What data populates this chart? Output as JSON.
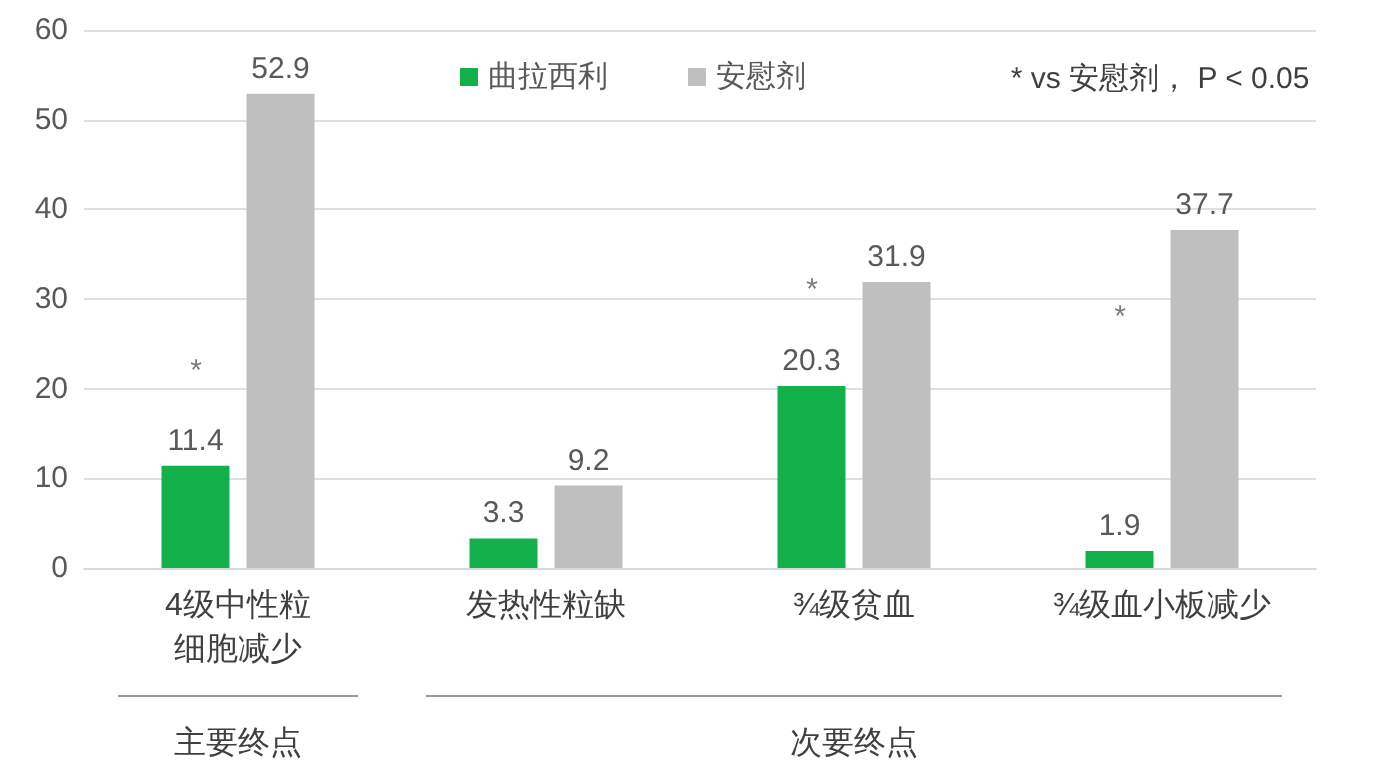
{
  "chart_data": {
    "type": "bar",
    "categories": [
      "4级中性粒细胞减少",
      "发热性粒缺",
      "¾级贫血",
      "¾级血小板减少"
    ],
    "series": [
      {
        "name": "曲拉西利",
        "color": "#12b14c",
        "values": [
          11.4,
          3.3,
          20.3,
          1.9
        ]
      },
      {
        "name": "安慰剂",
        "color": "#bfbfbf",
        "values": [
          52.9,
          9.2,
          31.9,
          37.7
        ]
      }
    ],
    "ylim": [
      0,
      60
    ],
    "yticks": [
      0,
      10,
      20,
      30,
      40,
      50,
      60
    ],
    "grid": "y",
    "legend": "top",
    "data_labels": true,
    "annotations": [
      "* vs 安慰剂， P < 0.05",
      "主要终点",
      "次要终点",
      {
        "text": "*",
        "x": "4级中性粒细胞减少",
        "y": 22
      },
      {
        "text": "*",
        "x": "¾级贫血",
        "y": 31
      },
      {
        "text": "*",
        "x": "¾级血小板减少",
        "y": 28
      }
    ]
  }
}
